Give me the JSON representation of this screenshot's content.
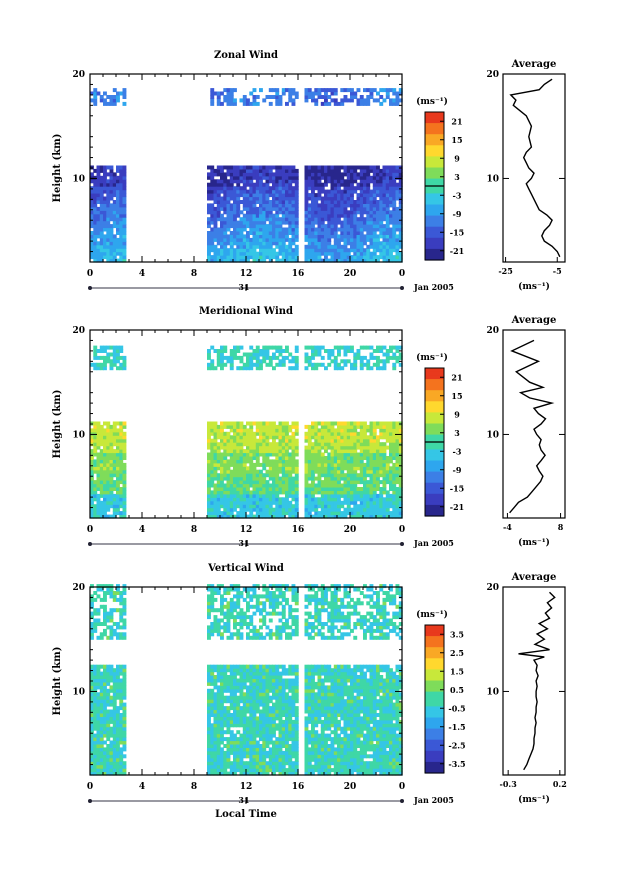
{
  "chart_data": [
    {
      "type": "heatmap",
      "title": "Zonal Wind",
      "ylabel": "Height (km)",
      "xlabel": "",
      "x_ticks": [
        "0",
        "4",
        "8",
        "12",
        "16",
        "20",
        "0"
      ],
      "x_range": [
        0,
        24
      ],
      "y_ticks": [
        "10",
        "20"
      ],
      "y_range": [
        2,
        20
      ],
      "date_tick": "31",
      "date_label": "Jan 2005",
      "colorbar": {
        "unit": "(ms⁻¹)",
        "ticks": [
          "21",
          "15",
          "9",
          "3",
          "-3",
          "-9",
          "-15",
          "-21"
        ],
        "range": [
          -24,
          24
        ],
        "zero_line": 0
      },
      "data_time_ranges": [
        [
          0,
          2.7
        ],
        [
          9,
          24
        ]
      ],
      "data_height_ranges": [
        [
          2,
          11.2
        ],
        [
          17.0,
          18.5
        ]
      ],
      "profile": {
        "title": "Average",
        "xlabel": "(ms⁻¹)",
        "x_ticks": [
          "-25",
          "-5"
        ],
        "x_range": [
          -26,
          -2
        ],
        "y_ticks": [
          "10",
          "20"
        ],
        "heights": [
          2.5,
          3,
          3.5,
          4,
          4.5,
          5,
          5.5,
          6,
          6.5,
          7,
          7.5,
          8,
          8.5,
          9,
          9.5,
          10,
          10.5,
          11,
          11.5,
          12,
          12.5,
          13,
          14,
          15,
          16,
          17,
          17.5,
          18,
          18.5,
          19,
          19.5
        ],
        "values": [
          -4,
          -5,
          -7,
          -10,
          -11,
          -10,
          -8,
          -7,
          -9,
          -12,
          -13,
          -14,
          -15,
          -16,
          -17,
          -15,
          -14,
          -16,
          -17,
          -18,
          -17,
          -15,
          -16,
          -15,
          -17,
          -22,
          -21,
          -23,
          -12,
          -10,
          -7
        ]
      }
    },
    {
      "type": "heatmap",
      "title": "Meridional Wind",
      "ylabel": "Height (km)",
      "xlabel": "",
      "x_ticks": [
        "0",
        "4",
        "8",
        "12",
        "16",
        "20",
        "0"
      ],
      "x_range": [
        0,
        24
      ],
      "y_ticks": [
        "10",
        "20"
      ],
      "y_range": [
        2,
        20
      ],
      "date_tick": "31",
      "date_label": "Jan 2005",
      "colorbar": {
        "unit": "(ms⁻¹)",
        "ticks": [
          "21",
          "15",
          "9",
          "3",
          "-3",
          "-9",
          "-15",
          "-21"
        ],
        "range": [
          -24,
          24
        ],
        "zero_line": 0
      },
      "data_time_ranges": [
        [
          0,
          2.7
        ],
        [
          9,
          24
        ]
      ],
      "data_height_ranges": [
        [
          2,
          11.2
        ],
        [
          16.2,
          18.5
        ]
      ],
      "profile": {
        "title": "Average",
        "xlabel": "(ms⁻¹)",
        "x_ticks": [
          "-4",
          "8"
        ],
        "x_range": [
          -5,
          9
        ],
        "y_ticks": [
          "10",
          "20"
        ],
        "heights": [
          2.5,
          3,
          3.5,
          4,
          4.5,
          5,
          5.5,
          6,
          6.5,
          7,
          7.5,
          8,
          8.5,
          9,
          9.5,
          10,
          10.5,
          11,
          11.5,
          12,
          12.5,
          13,
          13.5,
          14,
          14.5,
          15,
          16,
          17,
          18,
          19
        ],
        "values": [
          -3.5,
          -2.5,
          -1.5,
          0.5,
          1.5,
          2.5,
          3.5,
          4,
          3.2,
          2.6,
          3.6,
          4.5,
          3.6,
          3.2,
          3.6,
          2.6,
          2.0,
          3.6,
          4.6,
          3.0,
          2.0,
          6.0,
          1.0,
          -1.0,
          4.0,
          1.0,
          -2.0,
          3.0,
          -3.0,
          2.0
        ]
      }
    },
    {
      "type": "heatmap",
      "title": "Vertical Wind",
      "ylabel": "Height (km)",
      "xlabel": "Local Time",
      "x_ticks": [
        "0",
        "4",
        "8",
        "12",
        "16",
        "20",
        "0"
      ],
      "x_range": [
        0,
        24
      ],
      "y_ticks": [
        "10",
        "20"
      ],
      "y_range": [
        2,
        20
      ],
      "date_tick": "31",
      "date_label": "Jan 2005",
      "colorbar": {
        "unit": "(ms⁻¹)",
        "ticks": [
          "3.5",
          "2.5",
          "1.5",
          "0.5",
          "-0.5",
          "-1.5",
          "-2.5",
          "-3.5"
        ],
        "range": [
          -4,
          4
        ]
      },
      "data_time_ranges": [
        [
          0,
          2.7
        ],
        [
          9,
          24
        ]
      ],
      "data_height_ranges": [
        [
          2,
          12.5
        ],
        [
          15.0,
          20
        ]
      ],
      "profile": {
        "title": "Average",
        "xlabel": "(ms⁻¹)",
        "x_ticks": [
          "-0.3",
          "0.2"
        ],
        "x_range": [
          -0.35,
          0.25
        ],
        "y_ticks": [
          "10",
          "20"
        ],
        "heights": [
          2.5,
          3,
          3.5,
          4,
          4.5,
          5,
          5.5,
          6,
          6.5,
          7,
          7.5,
          8,
          8.5,
          9,
          9.5,
          10,
          10.5,
          11,
          11.5,
          12,
          12.5,
          13,
          13.3,
          13.6,
          14,
          14.5,
          15,
          15.5,
          16,
          16.5,
          17,
          17.5,
          18,
          18.5,
          19,
          19.5
        ],
        "values": [
          -0.15,
          -0.12,
          -0.1,
          -0.08,
          -0.06,
          -0.05,
          -0.05,
          -0.04,
          -0.04,
          -0.03,
          -0.04,
          -0.03,
          -0.03,
          -0.02,
          -0.03,
          -0.03,
          -0.02,
          -0.03,
          -0.01,
          -0.03,
          -0.02,
          -0.05,
          0.05,
          -0.2,
          0.1,
          -0.04,
          0.05,
          -0.02,
          0.08,
          0.0,
          0.1,
          0.06,
          0.12,
          0.08,
          0.15,
          0.1
        ]
      }
    }
  ]
}
